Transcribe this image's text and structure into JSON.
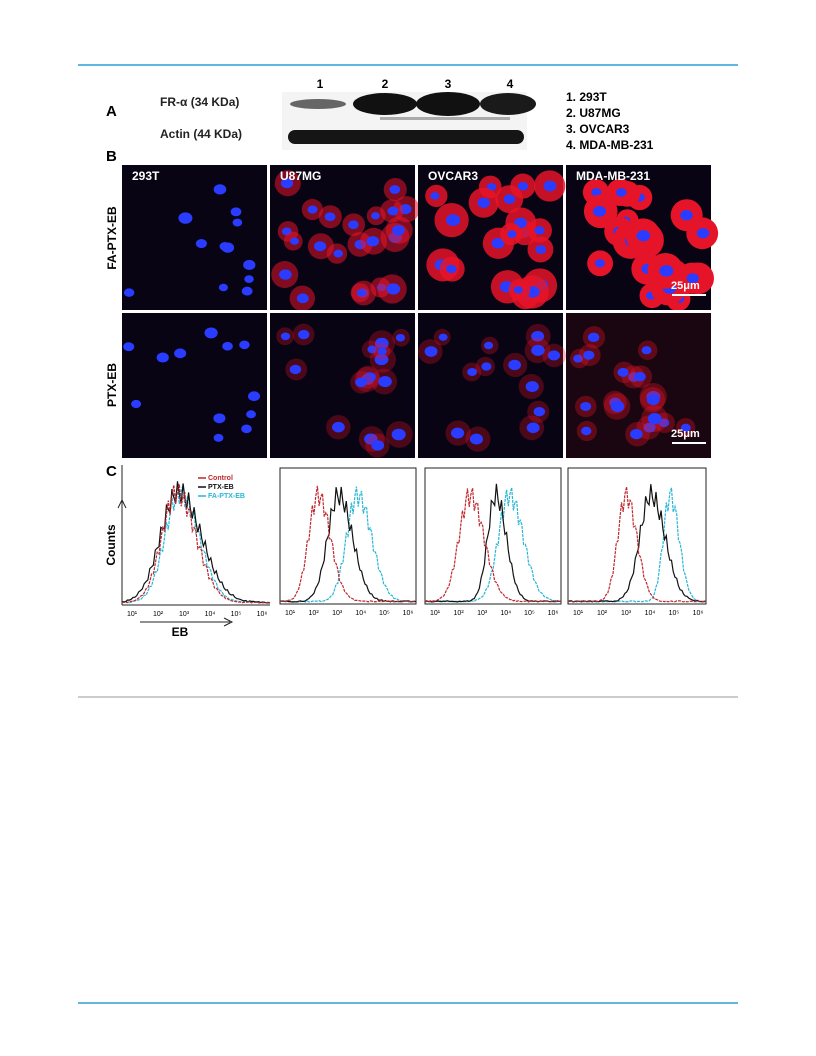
{
  "figure": {
    "panel_a": {
      "label": "A",
      "bands": [
        "FR-α (34 KDa)",
        "Actin (44 KDa)"
      ],
      "lanes": [
        "1",
        "2",
        "3",
        "4"
      ],
      "legend": [
        "1. 293T",
        "2. U87MG",
        "3. OVCAR3",
        "4. MDA-MB-231"
      ]
    },
    "panel_b": {
      "label": "B",
      "rows": [
        "FA-PTX-EB",
        "PTX-EB"
      ],
      "columns": [
        "293T",
        "U87MG",
        "OVCAR3",
        "MDA-MB-231"
      ],
      "scale_bar": "25μm"
    },
    "panel_c": {
      "label": "C",
      "legend": [
        "Control",
        "PTX-EB",
        "FA-PTX-EB"
      ],
      "y_label": "Counts",
      "x_label": "EB",
      "x_ticks": [
        "10¹",
        "10²",
        "10³",
        "10⁴",
        "10⁵",
        "10⁶"
      ]
    }
  }
}
